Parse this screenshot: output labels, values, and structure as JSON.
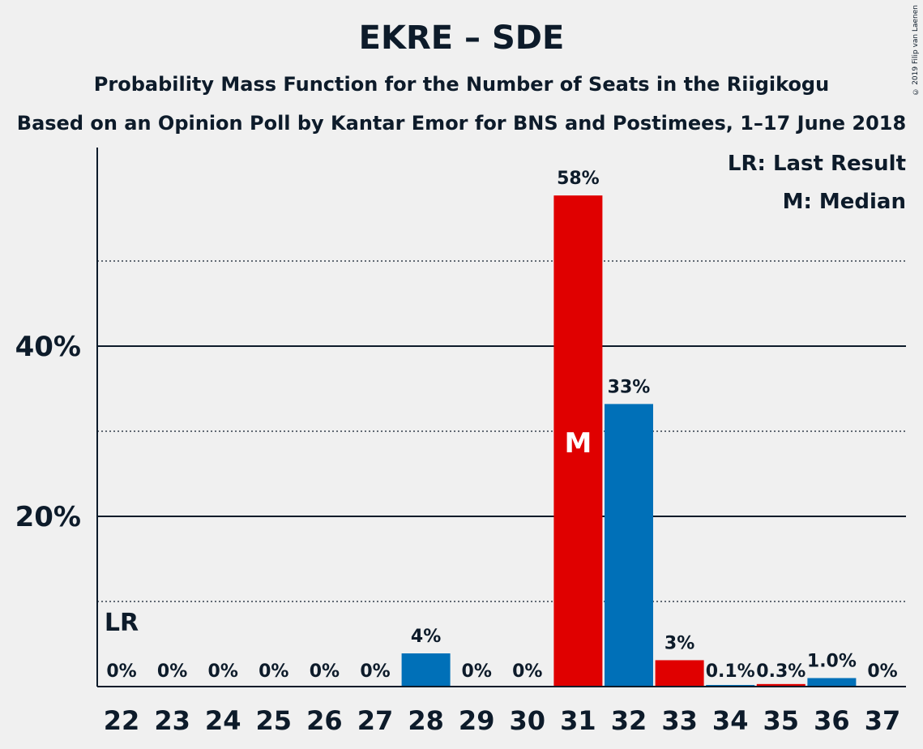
{
  "header": {
    "title": "EKRE – SDE",
    "subtitle1": "Probability Mass Function for the Number of Seats in the Riigikogu",
    "subtitle2": "Based on an Opinion Poll by Kantar Emor for BNS and Postimees, 1–17 June 2018",
    "copyright": "© 2019 Filip van Laenen"
  },
  "legend": {
    "last_result": "LR: Last Result",
    "median": "M: Median"
  },
  "colors": {
    "red": "#e00000",
    "blue": "#0070b8",
    "text": "#0d1b2a",
    "background": "#f0f0f0"
  },
  "chart_data": {
    "type": "bar",
    "title": "EKRE – SDE",
    "categories": [
      "22",
      "23",
      "24",
      "25",
      "26",
      "27",
      "28",
      "29",
      "30",
      "31",
      "32",
      "33",
      "34",
      "35",
      "36",
      "37"
    ],
    "values": [
      0,
      0,
      0,
      0,
      0,
      0,
      3.9,
      0,
      0,
      57.7,
      33.2,
      3.1,
      0.1,
      0.3,
      1.0,
      0
    ],
    "labels": [
      "0%",
      "0%",
      "0%",
      "0%",
      "0%",
      "0%",
      "4%",
      "0%",
      "0%",
      "58%",
      "33%",
      "3%",
      "0.1%",
      "0.3%",
      "1.0%",
      "0%"
    ],
    "bar_colors": [
      "red",
      "blue",
      "red",
      "blue",
      "red",
      "blue",
      "blue",
      "red",
      "blue",
      "red",
      "blue",
      "red",
      "blue",
      "red",
      "blue",
      "red"
    ],
    "ylim": [
      0,
      63
    ],
    "yticks": [
      20,
      40
    ],
    "ytick_labels": [
      "20%",
      "40%"
    ],
    "dotted_gridlines": [
      10,
      30,
      50
    ],
    "last_result": {
      "category": "22",
      "label": "LR"
    },
    "median": {
      "category": "31",
      "label": "M"
    }
  }
}
